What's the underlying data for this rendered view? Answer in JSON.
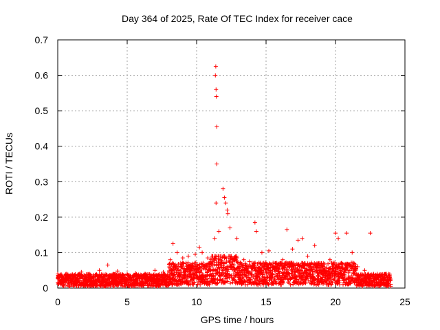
{
  "chart_data": {
    "type": "scatter",
    "title": "Day 364 of 2025, Rate Of TEC Index for receiver cace",
    "xlabel": "GPS time / hours",
    "ylabel": "ROTI / TECUs",
    "xlim": [
      0,
      25
    ],
    "ylim": [
      0,
      0.7
    ],
    "x_ticks": [
      "0",
      "5",
      "10",
      "15",
      "20",
      "25"
    ],
    "y_ticks": [
      "0",
      "0.1",
      "0.2",
      "0.3",
      "0.4",
      "0.5",
      "0.6",
      "0.7"
    ],
    "grid": true,
    "marker": "+",
    "color": "#ff0000",
    "series": [
      {
        "name": "ROTI",
        "points": [
          [
            0.1,
            0.03
          ],
          [
            0.6,
            0.04
          ],
          [
            1.2,
            0.035
          ],
          [
            1.7,
            0.045
          ],
          [
            2.3,
            0.038
          ],
          [
            3.0,
            0.05
          ],
          [
            3.6,
            0.065
          ],
          [
            4.3,
            0.048
          ],
          [
            5.0,
            0.04
          ],
          [
            5.6,
            0.042
          ],
          [
            6.3,
            0.04
          ],
          [
            7.0,
            0.05
          ],
          [
            7.6,
            0.045
          ],
          [
            8.1,
            0.08
          ],
          [
            8.3,
            0.125
          ],
          [
            8.6,
            0.1
          ],
          [
            9.0,
            0.085
          ],
          [
            9.4,
            0.09
          ],
          [
            9.9,
            0.095
          ],
          [
            10.2,
            0.115
          ],
          [
            10.4,
            0.1
          ],
          [
            10.8,
            0.085
          ],
          [
            11.3,
            0.14
          ],
          [
            11.35,
            0.6
          ],
          [
            11.38,
            0.625
          ],
          [
            11.4,
            0.56
          ],
          [
            11.42,
            0.54
          ],
          [
            11.45,
            0.455
          ],
          [
            11.45,
            0.35
          ],
          [
            11.4,
            0.24
          ],
          [
            11.6,
            0.16
          ],
          [
            11.9,
            0.28
          ],
          [
            12.0,
            0.255
          ],
          [
            12.1,
            0.24
          ],
          [
            12.2,
            0.22
          ],
          [
            12.25,
            0.21
          ],
          [
            12.4,
            0.17
          ],
          [
            12.9,
            0.14
          ],
          [
            13.4,
            0.08
          ],
          [
            13.8,
            0.075
          ],
          [
            14.2,
            0.185
          ],
          [
            14.3,
            0.16
          ],
          [
            14.7,
            0.1
          ],
          [
            15.2,
            0.105
          ],
          [
            15.7,
            0.07
          ],
          [
            16.2,
            0.08
          ],
          [
            16.5,
            0.165
          ],
          [
            16.9,
            0.11
          ],
          [
            17.3,
            0.135
          ],
          [
            17.6,
            0.14
          ],
          [
            18.0,
            0.09
          ],
          [
            18.5,
            0.12
          ],
          [
            19.0,
            0.07
          ],
          [
            19.6,
            0.08
          ],
          [
            20.0,
            0.155
          ],
          [
            20.2,
            0.14
          ],
          [
            20.8,
            0.155
          ],
          [
            21.2,
            0.1
          ],
          [
            21.6,
            0.06
          ],
          [
            22.1,
            0.05
          ],
          [
            22.5,
            0.155
          ],
          [
            23.0,
            0.04
          ],
          [
            23.5,
            0.038
          ],
          [
            23.9,
            0.035
          ]
        ]
      }
    ]
  }
}
